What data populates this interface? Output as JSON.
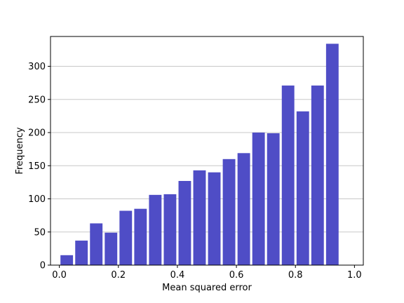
{
  "chart_data": {
    "type": "bar",
    "title": "",
    "xlabel": "Mean squared error",
    "ylabel": "Frequency",
    "xlim": [
      -0.03,
      1.03
    ],
    "ylim": [
      0,
      345
    ],
    "grid": "y",
    "bar_color": "#4f4dc6",
    "bin_width": 0.05,
    "bin_starts": [
      0.0,
      0.05,
      0.1,
      0.15,
      0.2,
      0.25,
      0.3,
      0.35,
      0.4,
      0.45,
      0.5,
      0.55,
      0.6,
      0.65,
      0.7,
      0.75,
      0.8,
      0.85,
      0.9,
      0.95
    ],
    "values": [
      15,
      37,
      63,
      49,
      82,
      85,
      106,
      107,
      127,
      143,
      140,
      160,
      169,
      200,
      199,
      271,
      232,
      271,
      334,
      0
    ],
    "x_ticks": [
      0.0,
      0.2,
      0.4,
      0.6,
      0.8,
      1.0
    ],
    "x_tick_labels": [
      "0.0",
      "0.2",
      "0.4",
      "0.6",
      "0.8",
      "1.0"
    ],
    "y_ticks": [
      0,
      50,
      100,
      150,
      200,
      250,
      300
    ],
    "y_tick_labels": [
      "0",
      "50",
      "100",
      "150",
      "200",
      "250",
      "300"
    ]
  }
}
